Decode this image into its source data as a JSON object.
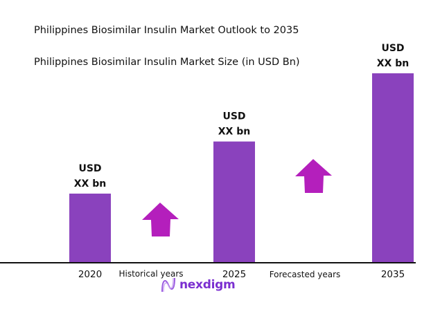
{
  "title": "Philippines Biosimilar Insulin Market Outlook to 2035",
  "subtitle": "Philippines Biosimilar Insulin Market Size (in USD Bn)",
  "chart_data": {
    "type": "bar",
    "title": "Philippines Biosimilar Insulin Market Outlook to 2035",
    "subtitle": "Philippines Biosimilar Insulin Market Size (in USD Bn)",
    "categories": [
      "2020",
      "2025",
      "2035"
    ],
    "values": [
      0.365,
      0.64,
      1.0
    ],
    "data_labels": [
      [
        "USD",
        "XX bn"
      ],
      [
        "USD",
        "XX bn"
      ],
      [
        "USD",
        "XX bn"
      ]
    ],
    "annotations": [
      "Historical years",
      "Forecasted years"
    ],
    "ylim": [
      0,
      1.0
    ],
    "grid": false,
    "legend": "none",
    "colors": {
      "bar": "#8a42bd",
      "arrow": "#b41fbc",
      "axis": "#111111"
    }
  },
  "logo": {
    "text": "nexdigm"
  }
}
